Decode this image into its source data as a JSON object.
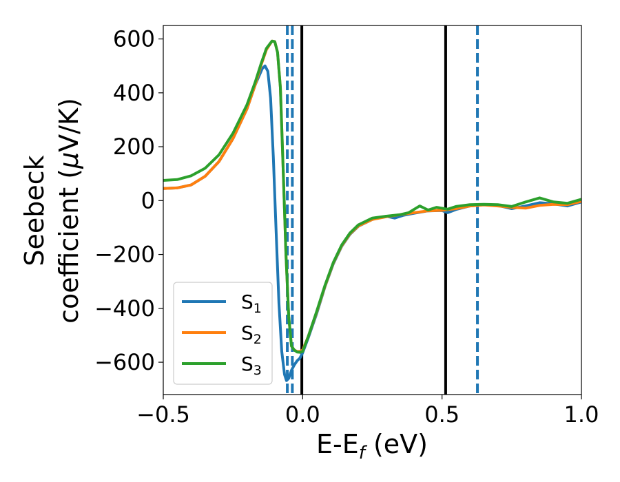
{
  "chart_data": {
    "type": "line",
    "title": "",
    "xlabel": "E-E",
    "xlabel_sub": "f",
    "xlabel_unit": " (eV)",
    "ylabel_line1": "Seebeck",
    "ylabel_line2": "coefficient  (",
    "ylabel_mu": "μ",
    "ylabel_unit": "V/K)",
    "xlim": [
      -0.5,
      1.0
    ],
    "ylim": [
      -720,
      650
    ],
    "xticks": [
      -0.5,
      0.0,
      0.5,
      1.0
    ],
    "xtick_labels": [
      "−0.5",
      "0.0",
      "0.5",
      "1.0"
    ],
    "yticks": [
      -600,
      -400,
      -200,
      0,
      200,
      400,
      600
    ],
    "ytick_labels": [
      "−600",
      "−400",
      "−200",
      "0",
      "200",
      "400",
      "600"
    ],
    "grid": false,
    "legend_position": "lower-left",
    "vlines": [
      {
        "x": -0.055,
        "style": "dashed",
        "color": "#1f77b4"
      },
      {
        "x": -0.037,
        "style": "dashed",
        "color": "#1f77b4"
      },
      {
        "x": -0.003,
        "style": "solid",
        "color": "#000000"
      },
      {
        "x": 0.513,
        "style": "solid",
        "color": "#000000"
      },
      {
        "x": 0.627,
        "style": "dashed",
        "color": "#1f77b4"
      }
    ],
    "series": [
      {
        "name": "S",
        "sub": "1",
        "color": "#1f77b4",
        "points": [
          [
            -0.5,
            45
          ],
          [
            -0.45,
            47
          ],
          [
            -0.4,
            58
          ],
          [
            -0.35,
            90
          ],
          [
            -0.3,
            145
          ],
          [
            -0.25,
            230
          ],
          [
            -0.2,
            340
          ],
          [
            -0.17,
            430
          ],
          [
            -0.145,
            490
          ],
          [
            -0.135,
            500
          ],
          [
            -0.125,
            480
          ],
          [
            -0.115,
            380
          ],
          [
            -0.105,
            160
          ],
          [
            -0.095,
            -120
          ],
          [
            -0.085,
            -380
          ],
          [
            -0.075,
            -560
          ],
          [
            -0.065,
            -645
          ],
          [
            -0.058,
            -668
          ],
          [
            -0.05,
            -660
          ],
          [
            -0.04,
            -630
          ],
          [
            -0.03,
            -610
          ],
          [
            -0.02,
            -595
          ],
          [
            -0.01,
            -585
          ],
          [
            0.0,
            -565
          ],
          [
            0.02,
            -510
          ],
          [
            0.05,
            -420
          ],
          [
            0.08,
            -320
          ],
          [
            0.11,
            -235
          ],
          [
            0.14,
            -170
          ],
          [
            0.17,
            -125
          ],
          [
            0.2,
            -95
          ],
          [
            0.25,
            -70
          ],
          [
            0.3,
            -58
          ],
          [
            0.33,
            -65
          ],
          [
            0.36,
            -55
          ],
          [
            0.4,
            -47
          ],
          [
            0.45,
            -38
          ],
          [
            0.5,
            -37
          ],
          [
            0.52,
            -45
          ],
          [
            0.55,
            -33
          ],
          [
            0.6,
            -20
          ],
          [
            0.65,
            -15
          ],
          [
            0.7,
            -18
          ],
          [
            0.75,
            -30
          ],
          [
            0.8,
            -20
          ],
          [
            0.85,
            -8
          ],
          [
            0.9,
            -12
          ],
          [
            0.95,
            -20
          ],
          [
            1.0,
            -5
          ]
        ]
      },
      {
        "name": "S",
        "sub": "2",
        "color": "#ff7f0e",
        "points": [
          [
            -0.5,
            45
          ],
          [
            -0.45,
            47
          ],
          [
            -0.4,
            58
          ],
          [
            -0.35,
            90
          ],
          [
            -0.3,
            145
          ],
          [
            -0.25,
            230
          ],
          [
            -0.2,
            340
          ],
          [
            -0.17,
            430
          ],
          [
            -0.15,
            500
          ],
          [
            -0.13,
            560
          ],
          [
            -0.11,
            592
          ],
          [
            -0.1,
            590
          ],
          [
            -0.09,
            550
          ],
          [
            -0.08,
            420
          ],
          [
            -0.07,
            120
          ],
          [
            -0.06,
            -200
          ],
          [
            -0.05,
            -430
          ],
          [
            -0.04,
            -540
          ],
          [
            -0.03,
            -555
          ],
          [
            -0.02,
            -560
          ],
          [
            -0.01,
            -560
          ],
          [
            0.0,
            -555
          ],
          [
            0.02,
            -505
          ],
          [
            0.05,
            -415
          ],
          [
            0.08,
            -318
          ],
          [
            0.11,
            -232
          ],
          [
            0.14,
            -168
          ],
          [
            0.17,
            -123
          ],
          [
            0.2,
            -94
          ],
          [
            0.25,
            -70
          ],
          [
            0.3,
            -60
          ],
          [
            0.35,
            -52
          ],
          [
            0.4,
            -45
          ],
          [
            0.45,
            -38
          ],
          [
            0.5,
            -36
          ],
          [
            0.55,
            -30
          ],
          [
            0.6,
            -20
          ],
          [
            0.65,
            -16
          ],
          [
            0.7,
            -20
          ],
          [
            0.75,
            -25
          ],
          [
            0.8,
            -28
          ],
          [
            0.85,
            -18
          ],
          [
            0.9,
            -14
          ],
          [
            0.95,
            -15
          ],
          [
            1.0,
            -3
          ]
        ]
      },
      {
        "name": "S",
        "sub": "3",
        "color": "#2ca02c",
        "points": [
          [
            -0.5,
            75
          ],
          [
            -0.45,
            78
          ],
          [
            -0.4,
            92
          ],
          [
            -0.35,
            120
          ],
          [
            -0.3,
            170
          ],
          [
            -0.25,
            250
          ],
          [
            -0.2,
            355
          ],
          [
            -0.17,
            440
          ],
          [
            -0.15,
            505
          ],
          [
            -0.13,
            565
          ],
          [
            -0.11,
            592
          ],
          [
            -0.1,
            590
          ],
          [
            -0.09,
            550
          ],
          [
            -0.08,
            420
          ],
          [
            -0.07,
            120
          ],
          [
            -0.06,
            -200
          ],
          [
            -0.05,
            -430
          ],
          [
            -0.04,
            -540
          ],
          [
            -0.03,
            -555
          ],
          [
            -0.02,
            -562
          ],
          [
            -0.01,
            -563
          ],
          [
            0.0,
            -560
          ],
          [
            0.02,
            -505
          ],
          [
            0.05,
            -412
          ],
          [
            0.08,
            -315
          ],
          [
            0.11,
            -230
          ],
          [
            0.14,
            -165
          ],
          [
            0.17,
            -120
          ],
          [
            0.2,
            -90
          ],
          [
            0.25,
            -65
          ],
          [
            0.3,
            -58
          ],
          [
            0.35,
            -52
          ],
          [
            0.38,
            -45
          ],
          [
            0.42,
            -20
          ],
          [
            0.45,
            -35
          ],
          [
            0.48,
            -25
          ],
          [
            0.52,
            -32
          ],
          [
            0.55,
            -22
          ],
          [
            0.6,
            -15
          ],
          [
            0.65,
            -14
          ],
          [
            0.7,
            -15
          ],
          [
            0.75,
            -22
          ],
          [
            0.8,
            -5
          ],
          [
            0.85,
            10
          ],
          [
            0.9,
            -5
          ],
          [
            0.95,
            -10
          ],
          [
            1.0,
            5
          ]
        ]
      }
    ]
  }
}
